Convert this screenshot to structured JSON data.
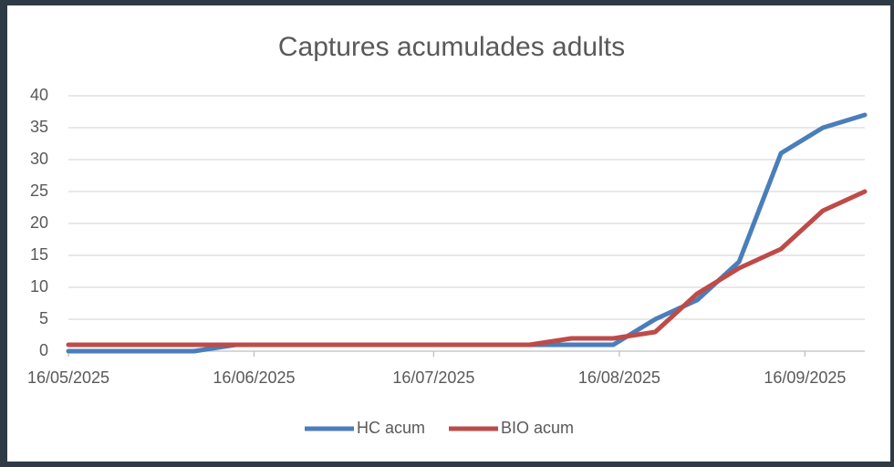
{
  "chart_data": {
    "type": "line",
    "title": "Captures acumulades adults",
    "x": [
      "16/05/2025",
      "23/05/2025",
      "30/05/2025",
      "06/06/2025",
      "13/06/2025",
      "20/06/2025",
      "27/06/2025",
      "04/07/2025",
      "11/07/2025",
      "18/07/2025",
      "25/07/2025",
      "01/08/2025",
      "08/08/2025",
      "15/08/2025",
      "22/08/2025",
      "29/08/2025",
      "05/09/2025",
      "12/09/2025",
      "19/09/2025",
      "26/09/2025"
    ],
    "series": [
      {
        "name": "HC acum",
        "color": "#4a7ebb",
        "values": [
          0,
          0,
          0,
          0,
          1,
          1,
          1,
          1,
          1,
          1,
          1,
          1,
          1,
          1,
          5,
          8,
          14,
          31,
          35,
          37
        ]
      },
      {
        "name": "BIO acum",
        "color": "#be4b48",
        "values": [
          1,
          1,
          1,
          1,
          1,
          1,
          1,
          1,
          1,
          1,
          1,
          1,
          2,
          2,
          3,
          9,
          13,
          16,
          22,
          25
        ]
      }
    ],
    "xlim": [
      "16/05/2025",
      "26/09/2025"
    ],
    "xticks": [
      "16/05/2025",
      "16/06/2025",
      "16/07/2025",
      "16/08/2025",
      "16/09/2025"
    ],
    "ylim": [
      0,
      40
    ],
    "yticks": [
      0,
      5,
      10,
      15,
      20,
      25,
      30,
      35,
      40
    ],
    "grid": true,
    "legend": "bottom"
  }
}
